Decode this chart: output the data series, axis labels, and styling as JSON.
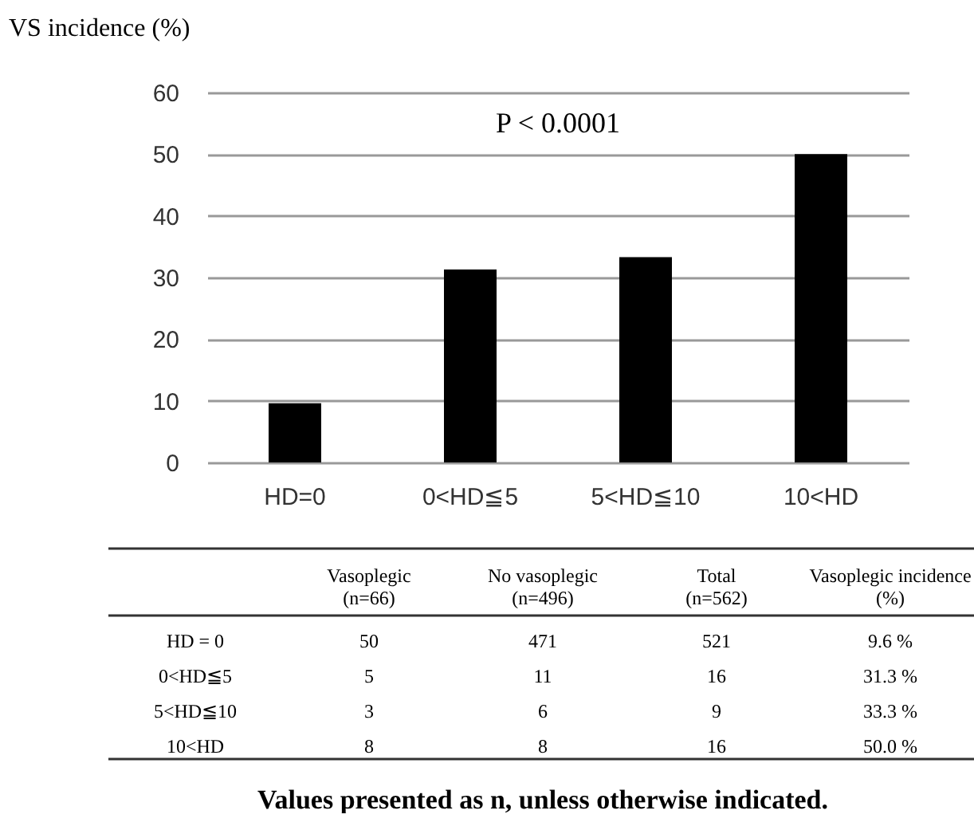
{
  "chart_data": [
    {
      "type": "bar",
      "ylabel": "VS incidence (%)",
      "categories": [
        "HD=0",
        "0<HD≦5",
        "5<HD≦10",
        "10<HD"
      ],
      "values": [
        9.6,
        31.3,
        33.3,
        50.0
      ],
      "color": "#000000",
      "ylim": [
        0,
        60
      ],
      "yticks": [
        0,
        10,
        20,
        30,
        40,
        50,
        60
      ],
      "grid": "y",
      "annotations": [
        "P < 0.0001"
      ]
    },
    {
      "type": "other",
      "categories": [
        null,
        "Vasoplegic\n(n=66)",
        "No vasoplegic\n(n=496)",
        "Total\n(n=562)",
        "Vasoplegic incidence\n(%)"
      ],
      "y_categories": [
        "HD = 0",
        "0<HD≦5",
        "5<HD≦10",
        "10<HD"
      ],
      "cell_labels": [
        [
          "50",
          "471",
          "521",
          "9.6 %"
        ],
        [
          "5",
          "11",
          "16",
          "31.3 %"
        ],
        [
          "3",
          "6",
          "9",
          "33.3 %"
        ],
        [
          "8",
          "8",
          "16",
          "50.0 %"
        ]
      ],
      "annotations": [
        "Values presented as n, unless otherwise indicated."
      ]
    }
  ]
}
